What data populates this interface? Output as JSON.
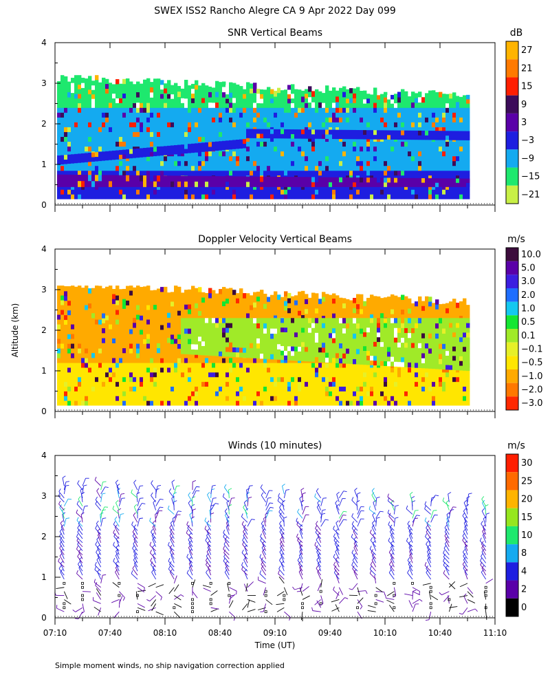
{
  "header": {
    "title": "SWEX ISS2 Rancho Alegre CA   9 Apr 2022 Day 099",
    "y_axis_label": "Altitude (km)",
    "x_axis_label": "Time (UT)",
    "footnote": "Simple moment winds, no ship navigation correction applied"
  },
  "chart_data": [
    {
      "type": "heatmap",
      "title": "SNR Vertical Beams",
      "ylim": [
        0,
        4
      ],
      "y_ticks": [
        "0",
        "1",
        "2",
        "3",
        "4"
      ],
      "colorbar": {
        "unit": "dB",
        "labels": [
          "27",
          "21",
          "15",
          "9",
          "3",
          "−3",
          "−9",
          "−15",
          "−21"
        ],
        "colors": [
          "#ffb400",
          "#ff7a00",
          "#ff1e00",
          "#3c0c5a",
          "#5a00a8",
          "#1e1ee0",
          "#14aaf0",
          "#1ee86e",
          "#c8f046"
        ]
      },
      "layers": [
        {
          "bottom": 0.15,
          "top": 0.85,
          "dominant": "#1e1ee0"
        },
        {
          "bottom": 0.45,
          "top": 0.75,
          "dominant": "#5a00a8"
        },
        {
          "bottom": 0.85,
          "top": 2.4,
          "dominant": "#14aaf0"
        },
        {
          "bottom": 1.6,
          "top": 1.9,
          "dominant": "#1e1ee0"
        },
        {
          "bottom": 2.4,
          "top": 3.2,
          "dominant": "#1ee86e"
        }
      ]
    },
    {
      "type": "heatmap",
      "title": "Doppler Velocity Vertical Beams",
      "ylim": [
        0,
        4
      ],
      "y_ticks": [
        "0",
        "1",
        "2",
        "3",
        "4"
      ],
      "colorbar": {
        "unit": "m/s",
        "labels": [
          "10.0",
          "5.0",
          "3.0",
          "2.0",
          "1.0",
          "0.5",
          "0.1",
          "−0.1",
          "−0.5",
          "−1.0",
          "−2.0",
          "−3.0"
        ],
        "colors": [
          "#3c0c3c",
          "#5a00a8",
          "#3c1ee0",
          "#1e6eff",
          "#14c8f0",
          "#14e632",
          "#a0ea28",
          "#e6f028",
          "#ffe600",
          "#ffaa00",
          "#ff7800",
          "#ff2800"
        ]
      },
      "layers": [
        {
          "bottom": 0.15,
          "top": 1.2,
          "dominant": "#ffe600"
        },
        {
          "bottom": 1.2,
          "top": 3.1,
          "dominant": "#ffaa00"
        },
        {
          "bottom": 1.0,
          "top": 2.4,
          "dominant": "#a0ea28"
        }
      ]
    },
    {
      "type": "scatter",
      "title": "Winds (10 minutes)",
      "ylim": [
        0,
        4
      ],
      "y_ticks": [
        "0",
        "1",
        "2",
        "3",
        "4"
      ],
      "x_ticks": [
        "07:10",
        "07:40",
        "08:10",
        "08:40",
        "09:10",
        "09:40",
        "10:10",
        "10:40",
        "11:10"
      ],
      "xlim_minutes": [
        0,
        240
      ],
      "profile_interval_minutes": 10,
      "colorbar": {
        "unit": "m/s",
        "labels": [
          "30",
          "25",
          "20",
          "15",
          "10",
          "8",
          "4",
          "2",
          "0"
        ],
        "colors": [
          "#ff1e00",
          "#ff6a00",
          "#ffb400",
          "#96e61e",
          "#1ee86e",
          "#14aaf0",
          "#1e1ee0",
          "#5a00a8",
          "#000000"
        ]
      }
    }
  ]
}
